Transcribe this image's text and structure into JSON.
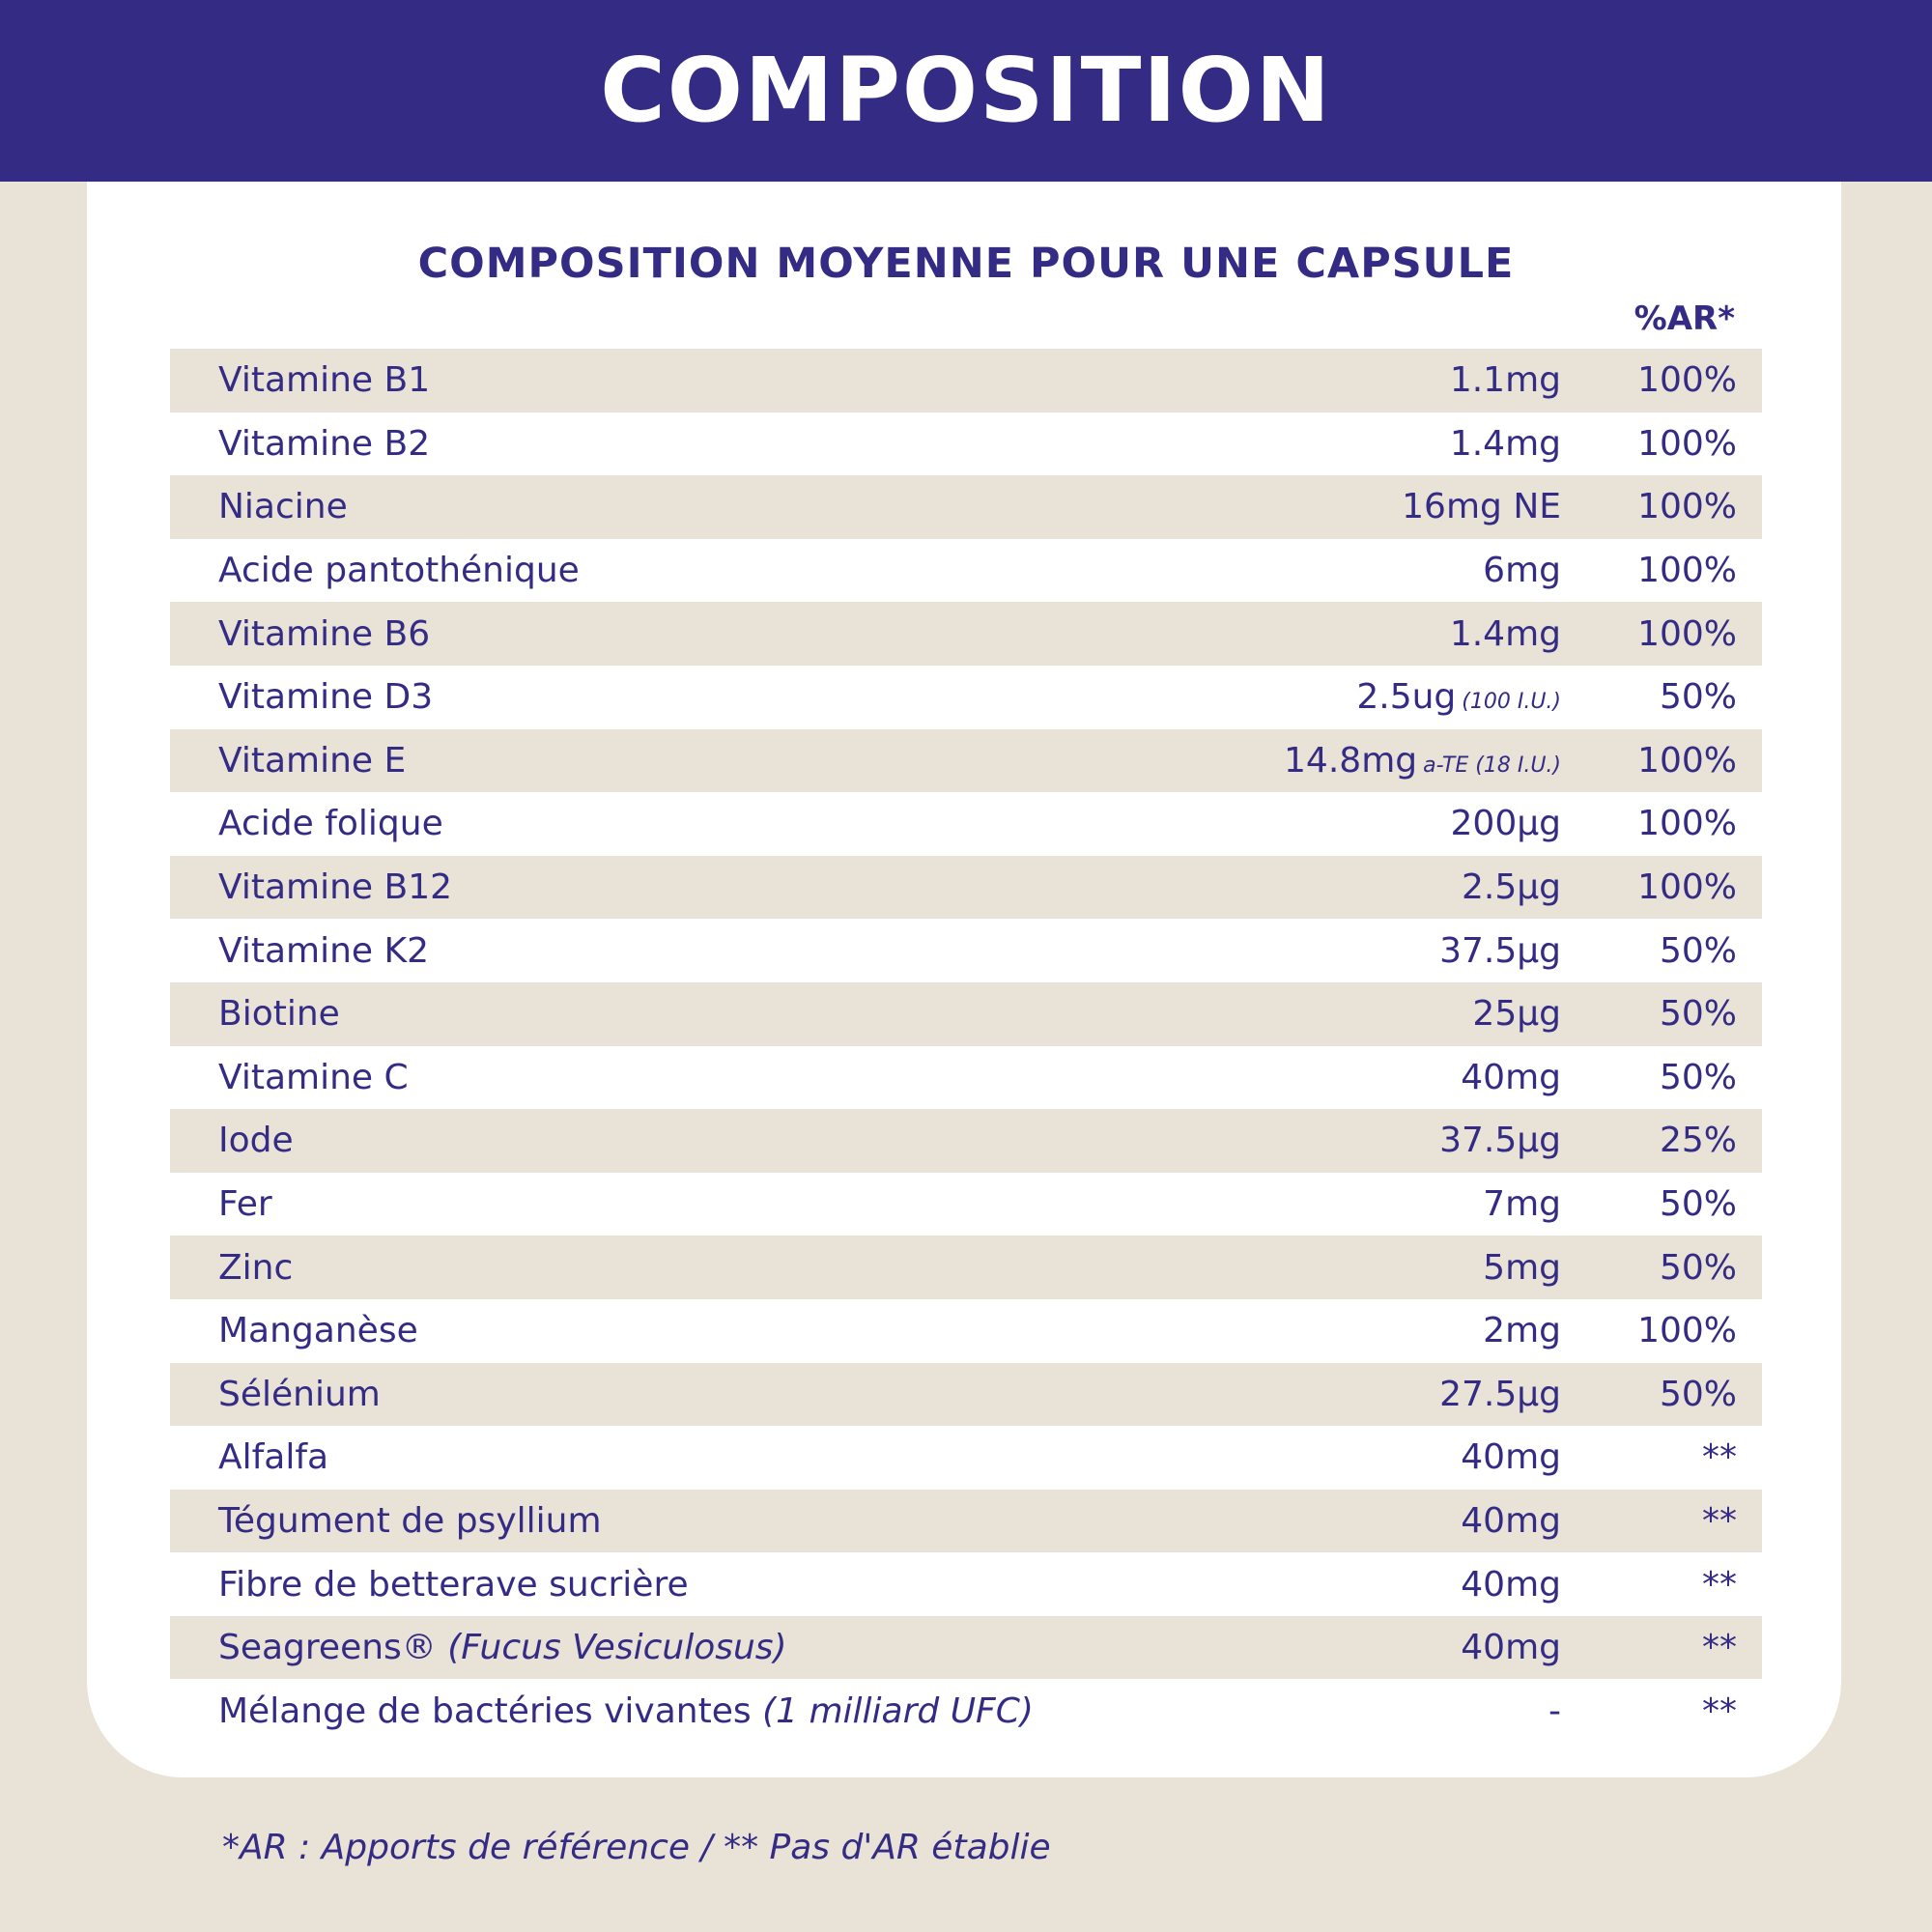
{
  "header": {
    "title": "COMPOSITION"
  },
  "subtitle": "COMPOSITION MOYENNE POUR UNE CAPSULE",
  "column_header": "%AR*",
  "rows": [
    {
      "name": "Vitamine B1",
      "name_note": "",
      "amount": "1.1mg",
      "amount_note": "",
      "ar": "100%"
    },
    {
      "name": "Vitamine B2",
      "name_note": "",
      "amount": "1.4mg",
      "amount_note": "",
      "ar": "100%"
    },
    {
      "name": "Niacine",
      "name_note": "",
      "amount": "16mg NE",
      "amount_note": "",
      "ar": "100%"
    },
    {
      "name": "Acide pantothénique",
      "name_note": "",
      "amount": "6mg",
      "amount_note": "",
      "ar": "100%"
    },
    {
      "name": "Vitamine B6",
      "name_note": "",
      "amount": "1.4mg",
      "amount_note": "",
      "ar": "100%"
    },
    {
      "name": "Vitamine D3",
      "name_note": "",
      "amount": "2.5ug",
      "amount_note": "(100 I.U.)",
      "ar": "50%"
    },
    {
      "name": "Vitamine E",
      "name_note": "",
      "amount": "14.8mg",
      "amount_note": "a-TE (18 I.U.)",
      "ar": "100%"
    },
    {
      "name": "Acide folique",
      "name_note": "",
      "amount": "200µg",
      "amount_note": "",
      "ar": "100%"
    },
    {
      "name": "Vitamine B12",
      "name_note": "",
      "amount": "2.5µg",
      "amount_note": "",
      "ar": "100%"
    },
    {
      "name": "Vitamine K2",
      "name_note": "",
      "amount": "37.5µg",
      "amount_note": "",
      "ar": "50%"
    },
    {
      "name": "Biotine",
      "name_note": "",
      "amount": "25µg",
      "amount_note": "",
      "ar": "50%"
    },
    {
      "name": "Vitamine C",
      "name_note": "",
      "amount": "40mg",
      "amount_note": "",
      "ar": "50%"
    },
    {
      "name": "Iode",
      "name_note": "",
      "amount": "37.5µg",
      "amount_note": "",
      "ar": "25%"
    },
    {
      "name": "Fer",
      "name_note": "",
      "amount": "7mg",
      "amount_note": "",
      "ar": "50%"
    },
    {
      "name": "Zinc",
      "name_note": "",
      "amount": "5mg",
      "amount_note": "",
      "ar": "50%"
    },
    {
      "name": "Manganèse",
      "name_note": "",
      "amount": "2mg",
      "amount_note": "",
      "ar": "100%"
    },
    {
      "name": "Sélénium",
      "name_note": "",
      "amount": "27.5µg",
      "amount_note": "",
      "ar": "50%"
    },
    {
      "name": "Alfalfa",
      "name_note": "",
      "amount": "40mg",
      "amount_note": "",
      "ar": "**"
    },
    {
      "name": "Tégument de psyllium",
      "name_note": "",
      "amount": "40mg",
      "amount_note": "",
      "ar": "**"
    },
    {
      "name": "Fibre de betterave sucrière",
      "name_note": "",
      "amount": "40mg",
      "amount_note": "",
      "ar": "**"
    },
    {
      "name": "Seagreens®",
      "name_note": "(Fucus Vesiculosus)",
      "amount": "40mg",
      "amount_note": "",
      "ar": "**"
    },
    {
      "name": "Mélange de bactéries vivantes",
      "name_note": "(1 milliard UFC)",
      "amount": "-",
      "amount_note": "",
      "ar": "**"
    }
  ],
  "footnote": "*AR : Apports de référence / ** Pas d'AR établie",
  "colors": {
    "brand": "#342c84",
    "background": "#e9e2d6",
    "card": "#ffffff"
  }
}
